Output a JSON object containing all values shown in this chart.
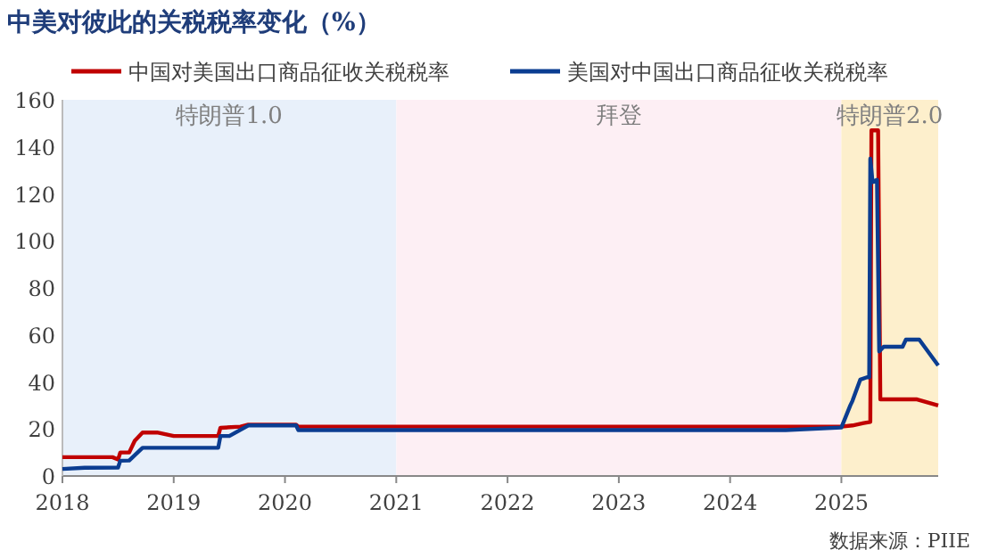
{
  "chart_data": {
    "type": "line",
    "title": "中美对彼此的关税税率变化（%）",
    "annotations": [
      "数据来源：PIIE"
    ],
    "xlim": [
      2018,
      2025.87
    ],
    "xticks": [
      2018,
      2019,
      2020,
      2021,
      2022,
      2023,
      2024,
      2025
    ],
    "ylim": [
      0,
      160
    ],
    "yticks": [
      0,
      20,
      40,
      60,
      80,
      100,
      120,
      140,
      160
    ],
    "grid": false,
    "legend": "top",
    "line_style": "solid",
    "marker": "none",
    "bands": [
      {
        "axis": "x",
        "from": 2018,
        "to": 2021,
        "label": "特朗普1.0",
        "color": "#e8f0fa"
      },
      {
        "axis": "x",
        "from": 2021,
        "to": 2025,
        "label": "拜登",
        "color": "#fdeff4"
      },
      {
        "axis": "x",
        "from": 2025,
        "to": 2025.87,
        "label": "特朗普2.0",
        "color": "#fdefcc"
      }
    ],
    "series": [
      {
        "name": "中国对美国出口商品征收关税税率",
        "color": "#c00000",
        "x": [
          2018,
          2018.45,
          2018.5,
          2018.52,
          2018.6,
          2018.65,
          2018.72,
          2018.85,
          2019,
          2019.4,
          2019.42,
          2019.6,
          2019.67,
          2020.1,
          2020.12,
          2025,
          2025.1,
          2025.2,
          2025.26,
          2025.27,
          2025.33,
          2025.35,
          2025.68,
          2025.87
        ],
        "values": [
          8,
          8,
          7,
          10,
          10,
          15,
          18.5,
          18.5,
          17,
          17,
          20.5,
          21,
          21.8,
          21.8,
          21,
          21,
          21.5,
          22.5,
          23,
          147,
          147,
          32.6,
          32.6,
          30
        ]
      },
      {
        "name": "美国对中国出口商品征收关税税率",
        "color": "#0b3d91",
        "x": [
          2018,
          2018.2,
          2018.5,
          2018.52,
          2018.6,
          2018.72,
          2019.4,
          2019.42,
          2019.5,
          2019.67,
          2020.1,
          2020.12,
          2024.5,
          2025,
          2025.08,
          2025.1,
          2025.17,
          2025.23,
          2025.25,
          2025.26,
          2025.28,
          2025.32,
          2025.34,
          2025.38,
          2025.55,
          2025.58,
          2025.7,
          2025.87
        ],
        "values": [
          3,
          3.5,
          3.6,
          6.5,
          6.6,
          12,
          12,
          17,
          17,
          21.5,
          21.5,
          19.5,
          19.5,
          20.6,
          30,
          32,
          41,
          42,
          42,
          135,
          125,
          126,
          53,
          55,
          55,
          58,
          58,
          47
        ]
      }
    ]
  }
}
